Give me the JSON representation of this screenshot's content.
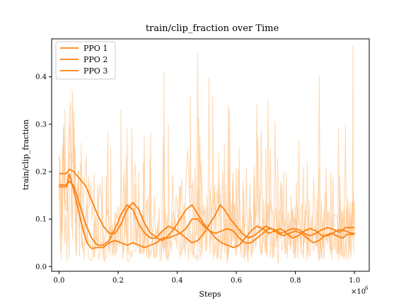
{
  "chart_data": {
    "type": "line",
    "title": "train/clip_fraction over Time",
    "xlabel": "Steps",
    "ylabel": "train/clip_fraction",
    "x_multiplier_label": "×10",
    "x_multiplier_exp": "6",
    "xlim": [
      -0.025,
      1.05
    ],
    "ylim": [
      -0.01,
      0.48
    ],
    "x_ticks": [
      0.0,
      0.2,
      0.4,
      0.6,
      0.8,
      1.0
    ],
    "x_tick_labels": [
      "0.0",
      "0.2",
      "0.4",
      "0.6",
      "0.8",
      "1.0"
    ],
    "y_ticks": [
      0.0,
      0.1,
      0.2,
      0.3,
      0.4
    ],
    "y_tick_labels": [
      "0.0",
      "0.1",
      "0.2",
      "0.3",
      "0.4"
    ],
    "grid": false,
    "legend_position": "top-left",
    "colors": {
      "line": "#ff7f0e",
      "raw": "#ffbb78"
    },
    "series": [
      {
        "name": "PPO 1",
        "smoothed": [
          [
            0.0,
            0.196
          ],
          [
            0.025,
            0.196
          ],
          [
            0.035,
            0.205
          ],
          [
            0.05,
            0.2
          ],
          [
            0.07,
            0.185
          ],
          [
            0.09,
            0.17
          ],
          [
            0.11,
            0.14
          ],
          [
            0.13,
            0.11
          ],
          [
            0.15,
            0.085
          ],
          [
            0.17,
            0.07
          ],
          [
            0.19,
            0.07
          ],
          [
            0.21,
            0.09
          ],
          [
            0.23,
            0.12
          ],
          [
            0.25,
            0.135
          ],
          [
            0.27,
            0.12
          ],
          [
            0.29,
            0.09
          ],
          [
            0.31,
            0.07
          ],
          [
            0.33,
            0.062
          ],
          [
            0.35,
            0.075
          ],
          [
            0.37,
            0.085
          ],
          [
            0.39,
            0.08
          ],
          [
            0.41,
            0.07
          ],
          [
            0.43,
            0.08
          ],
          [
            0.45,
            0.1
          ],
          [
            0.47,
            0.1
          ],
          [
            0.49,
            0.085
          ],
          [
            0.51,
            0.075
          ],
          [
            0.53,
            0.07
          ],
          [
            0.55,
            0.075
          ],
          [
            0.57,
            0.08
          ],
          [
            0.59,
            0.075
          ],
          [
            0.61,
            0.06
          ],
          [
            0.63,
            0.05
          ],
          [
            0.65,
            0.05
          ],
          [
            0.67,
            0.06
          ],
          [
            0.69,
            0.07
          ],
          [
            0.71,
            0.08
          ],
          [
            0.73,
            0.078
          ],
          [
            0.75,
            0.07
          ],
          [
            0.77,
            0.075
          ],
          [
            0.79,
            0.08
          ],
          [
            0.81,
            0.078
          ],
          [
            0.83,
            0.07
          ],
          [
            0.85,
            0.065
          ],
          [
            0.87,
            0.07
          ],
          [
            0.89,
            0.078
          ],
          [
            0.91,
            0.082
          ],
          [
            0.93,
            0.078
          ],
          [
            0.95,
            0.072
          ],
          [
            0.97,
            0.082
          ],
          [
            0.99,
            0.082
          ],
          [
            1.0,
            0.082
          ]
        ]
      },
      {
        "name": "PPO 2",
        "smoothed": [
          [
            0.0,
            0.168
          ],
          [
            0.025,
            0.168
          ],
          [
            0.035,
            0.195
          ],
          [
            0.05,
            0.16
          ],
          [
            0.065,
            0.12
          ],
          [
            0.08,
            0.08
          ],
          [
            0.095,
            0.05
          ],
          [
            0.11,
            0.038
          ],
          [
            0.13,
            0.04
          ],
          [
            0.15,
            0.04
          ],
          [
            0.17,
            0.05
          ],
          [
            0.19,
            0.055
          ],
          [
            0.21,
            0.05
          ],
          [
            0.23,
            0.045
          ],
          [
            0.25,
            0.05
          ],
          [
            0.27,
            0.045
          ],
          [
            0.29,
            0.04
          ],
          [
            0.31,
            0.045
          ],
          [
            0.33,
            0.05
          ],
          [
            0.35,
            0.06
          ],
          [
            0.37,
            0.06
          ],
          [
            0.39,
            0.065
          ],
          [
            0.41,
            0.07
          ],
          [
            0.43,
            0.06
          ],
          [
            0.45,
            0.05
          ],
          [
            0.47,
            0.055
          ],
          [
            0.49,
            0.07
          ],
          [
            0.51,
            0.09
          ],
          [
            0.53,
            0.11
          ],
          [
            0.545,
            0.13
          ],
          [
            0.56,
            0.12
          ],
          [
            0.58,
            0.1
          ],
          [
            0.6,
            0.085
          ],
          [
            0.62,
            0.07
          ],
          [
            0.64,
            0.06
          ],
          [
            0.66,
            0.065
          ],
          [
            0.68,
            0.075
          ],
          [
            0.7,
            0.085
          ],
          [
            0.72,
            0.08
          ],
          [
            0.74,
            0.07
          ],
          [
            0.76,
            0.065
          ],
          [
            0.78,
            0.07
          ],
          [
            0.8,
            0.075
          ],
          [
            0.82,
            0.07
          ],
          [
            0.84,
            0.06
          ],
          [
            0.86,
            0.05
          ],
          [
            0.88,
            0.055
          ],
          [
            0.9,
            0.065
          ],
          [
            0.92,
            0.07
          ],
          [
            0.94,
            0.065
          ],
          [
            0.96,
            0.06
          ],
          [
            0.975,
            0.068
          ],
          [
            0.99,
            0.068
          ],
          [
            1.0,
            0.068
          ]
        ]
      },
      {
        "name": "PPO 3",
        "smoothed": [
          [
            0.0,
            0.172
          ],
          [
            0.025,
            0.172
          ],
          [
            0.035,
            0.18
          ],
          [
            0.05,
            0.17
          ],
          [
            0.07,
            0.13
          ],
          [
            0.09,
            0.09
          ],
          [
            0.11,
            0.06
          ],
          [
            0.13,
            0.045
          ],
          [
            0.15,
            0.045
          ],
          [
            0.17,
            0.055
          ],
          [
            0.19,
            0.08
          ],
          [
            0.21,
            0.11
          ],
          [
            0.23,
            0.13
          ],
          [
            0.25,
            0.12
          ],
          [
            0.27,
            0.09
          ],
          [
            0.29,
            0.07
          ],
          [
            0.31,
            0.06
          ],
          [
            0.33,
            0.06
          ],
          [
            0.35,
            0.055
          ],
          [
            0.37,
            0.065
          ],
          [
            0.39,
            0.08
          ],
          [
            0.41,
            0.1
          ],
          [
            0.43,
            0.12
          ],
          [
            0.45,
            0.13
          ],
          [
            0.47,
            0.11
          ],
          [
            0.49,
            0.09
          ],
          [
            0.51,
            0.075
          ],
          [
            0.53,
            0.06
          ],
          [
            0.55,
            0.05
          ],
          [
            0.57,
            0.045
          ],
          [
            0.59,
            0.04
          ],
          [
            0.61,
            0.045
          ],
          [
            0.63,
            0.06
          ],
          [
            0.65,
            0.075
          ],
          [
            0.67,
            0.085
          ],
          [
            0.69,
            0.08
          ],
          [
            0.71,
            0.07
          ],
          [
            0.73,
            0.075
          ],
          [
            0.75,
            0.08
          ],
          [
            0.77,
            0.07
          ],
          [
            0.79,
            0.06
          ],
          [
            0.81,
            0.065
          ],
          [
            0.83,
            0.075
          ],
          [
            0.85,
            0.08
          ],
          [
            0.87,
            0.075
          ],
          [
            0.89,
            0.065
          ],
          [
            0.91,
            0.065
          ],
          [
            0.93,
            0.072
          ],
          [
            0.95,
            0.078
          ],
          [
            0.97,
            0.075
          ],
          [
            0.99,
            0.07
          ],
          [
            1.0,
            0.07
          ]
        ]
      }
    ],
    "raw_noise": {
      "description_units": "clip fraction",
      "x_start": 0.0,
      "x_end": 1.0,
      "spike_points": [
        [
          0.005,
          0.03
        ],
        [
          0.012,
          0.25
        ],
        [
          0.02,
          0.33
        ],
        [
          0.028,
          0.2
        ],
        [
          0.035,
          0.31
        ],
        [
          0.045,
          0.37
        ],
        [
          0.055,
          0.24
        ],
        [
          0.065,
          0.12
        ],
        [
          0.075,
          0.26
        ],
        [
          0.08,
          0.035
        ],
        [
          0.1,
          0.19
        ],
        [
          0.12,
          0.02
        ],
        [
          0.14,
          0.15
        ],
        [
          0.16,
          0.19
        ],
        [
          0.175,
          0.25
        ],
        [
          0.19,
          0.02
        ],
        [
          0.21,
          0.33
        ],
        [
          0.23,
          0.14
        ],
        [
          0.245,
          0.2
        ],
        [
          0.26,
          0.03
        ],
        [
          0.27,
          0.2
        ],
        [
          0.285,
          0.22
        ],
        [
          0.3,
          0.15
        ],
        [
          0.31,
          0.28
        ],
        [
          0.33,
          0.02
        ],
        [
          0.355,
          0.41
        ],
        [
          0.37,
          0.3
        ],
        [
          0.39,
          0.09
        ],
        [
          0.41,
          0.17
        ],
        [
          0.43,
          0.06
        ],
        [
          0.445,
          0.36
        ],
        [
          0.46,
          0.21
        ],
        [
          0.48,
          0.04
        ],
        [
          0.5,
          0.15
        ],
        [
          0.52,
          0.36
        ],
        [
          0.54,
          0.24
        ],
        [
          0.56,
          0.26
        ],
        [
          0.575,
          0.03
        ],
        [
          0.59,
          0.13
        ],
        [
          0.61,
          0.25
        ],
        [
          0.625,
          0.16
        ],
        [
          0.64,
          0.01
        ],
        [
          0.66,
          0.21
        ],
        [
          0.68,
          0.17
        ],
        [
          0.7,
          0.25
        ],
        [
          0.72,
          0.05
        ],
        [
          0.74,
          0.23
        ],
        [
          0.76,
          0.2
        ],
        [
          0.785,
          0.15
        ],
        [
          0.8,
          0.03
        ],
        [
          0.82,
          0.13
        ],
        [
          0.84,
          0.22
        ],
        [
          0.86,
          0.04
        ],
        [
          0.88,
          0.21
        ],
        [
          0.9,
          0.07
        ],
        [
          0.92,
          0.2
        ],
        [
          0.94,
          0.03
        ],
        [
          0.955,
          0.12
        ],
        [
          0.97,
          0.23
        ],
        [
          0.985,
          0.03
        ],
        [
          0.995,
          0.465
        ],
        [
          1.0,
          0.07
        ]
      ]
    }
  }
}
